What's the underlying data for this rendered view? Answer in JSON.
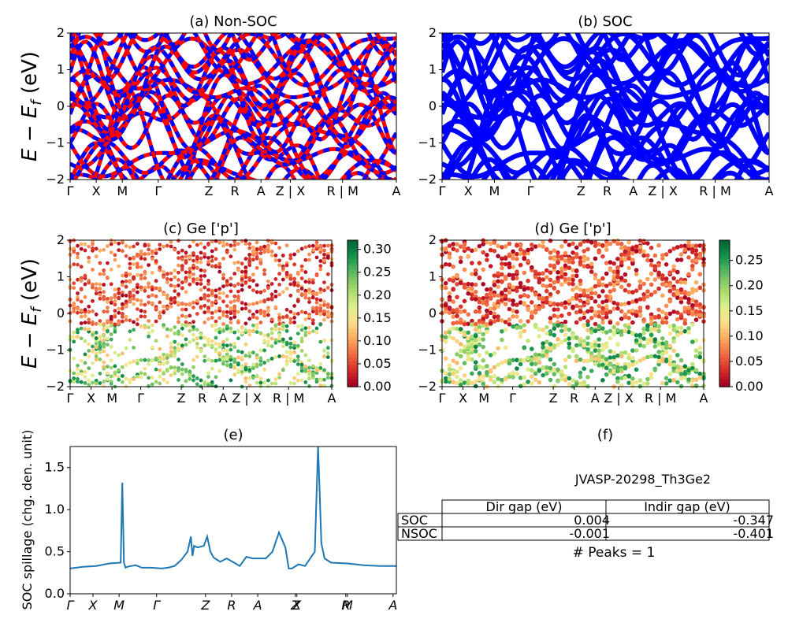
{
  "panels": {
    "a": {
      "title": "(a) Non-SOC",
      "ylabel": "E − E_f (eV)",
      "ylim": [
        -2,
        2
      ],
      "yticks": [
        "−2",
        "−1",
        "0",
        "1",
        "2"
      ],
      "kpath": [
        "Γ",
        "X",
        "M",
        "Γ",
        "Z",
        "R",
        "A",
        "Z | X",
        "R | M",
        "A"
      ],
      "colors": [
        "#ff0000",
        "#0000ff"
      ]
    },
    "b": {
      "title": "(b) SOC",
      "ylim": [
        -2,
        2
      ],
      "yticks": [
        "−2",
        "−1",
        "0",
        "1",
        "2"
      ],
      "kpath": [
        "Γ",
        "X",
        "M",
        "Γ",
        "Z",
        "R",
        "A",
        "Z | X",
        "R | M",
        "A"
      ],
      "colors": [
        "#0000ff"
      ]
    },
    "c": {
      "title": "(c)  Ge ['p']",
      "ylabel": "E − E_f (eV)",
      "ylim": [
        -2,
        2
      ],
      "yticks": [
        "−2",
        "−1",
        "0",
        "1",
        "2"
      ],
      "kpath": [
        "Γ",
        "X",
        "M",
        "Γ",
        "Z",
        "R",
        "A",
        "Z | X",
        "R | M",
        "A"
      ],
      "colorbar": {
        "ticks": [
          "0.00",
          "0.05",
          "0.10",
          "0.15",
          "0.20",
          "0.25",
          "0.30"
        ],
        "max": 0.32
      }
    },
    "d": {
      "title": "(d) Ge ['p']",
      "ylim": [
        -2,
        2
      ],
      "yticks": [
        "−2",
        "−1",
        "0",
        "1",
        "2"
      ],
      "kpath": [
        "Γ",
        "X",
        "M",
        "Γ",
        "Z",
        "R",
        "A",
        "Z | X",
        "R | M",
        "A"
      ],
      "colorbar": {
        "ticks": [
          "0.00",
          "0.05",
          "0.10",
          "0.15",
          "0.20",
          "0.25"
        ],
        "max": 0.29
      }
    },
    "e": {
      "title": "(e)",
      "ylabel": "SOC spillage (chg. den. unit)",
      "ylim": [
        0,
        1.75
      ],
      "yticks": [
        "0.0",
        "0.5",
        "1.0",
        "1.5"
      ],
      "kpath": [
        "Γ",
        "X",
        "M",
        "Γ",
        "Z",
        "R",
        "A",
        "Z",
        "X",
        "R",
        "M",
        "A"
      ]
    },
    "f": {
      "title": "(f)",
      "material": "JVASP-20298_Th3Ge2",
      "table": {
        "headers": [
          "Dir gap (eV)",
          "Indir gap (eV)"
        ],
        "rows": [
          {
            "label": "SOC",
            "dir": "0.004",
            "indir": "-0.347"
          },
          {
            "label": "NSOC",
            "dir": "-0.001",
            "indir": "-0.401"
          }
        ]
      },
      "peaks": "# Peaks = 1"
    }
  },
  "chart_data": [
    {
      "type": "line",
      "title": "(a) Non-SOC",
      "ylabel": "E − E_f (eV)",
      "ylim": [
        -2,
        2
      ],
      "x_ticks": [
        "Γ",
        "X",
        "M",
        "Γ",
        "Z",
        "R",
        "A",
        "Z | X",
        "R | M",
        "A"
      ],
      "series": [
        {
          "name": "",
          "values": []
        }
      ]
    },
    {
      "type": "line",
      "title": "(b) SOC",
      "ylim": [
        -2,
        2
      ],
      "x_ticks": [
        "Γ",
        "X",
        "M",
        "Γ",
        "Z",
        "R",
        "A",
        "Z | X",
        "R | M",
        "A"
      ]
    },
    {
      "type": "scatter",
      "title": "(c)  Ge ['p']",
      "ylim": [
        -2,
        2
      ],
      "colorbar_range": [
        0,
        0.32
      ]
    },
    {
      "type": "scatter",
      "title": "(d) Ge ['p']",
      "ylim": [
        -2,
        2
      ],
      "colorbar_range": [
        0,
        0.29
      ]
    },
    {
      "type": "line",
      "title": "(e)",
      "ylabel": "SOC spillage (chg. den. unit)",
      "ylim": [
        0,
        1.75
      ],
      "x": [
        0,
        0.04,
        0.08,
        0.12,
        0.155,
        0.16,
        0.165,
        0.17,
        0.175,
        0.2,
        0.22,
        0.25,
        0.28,
        0.3,
        0.32,
        0.34,
        0.36,
        0.37,
        0.375,
        0.38,
        0.39,
        0.41,
        0.42,
        0.43,
        0.44,
        0.46,
        0.48,
        0.52,
        0.54,
        0.56,
        0.6,
        0.62,
        0.64,
        0.66,
        0.67,
        0.68,
        0.7,
        0.72,
        0.75,
        0.76,
        0.765,
        0.77,
        0.78,
        0.8,
        0.85,
        0.9,
        0.95,
        1.0
      ],
      "values": [
        0.3,
        0.32,
        0.33,
        0.36,
        0.37,
        1.32,
        0.37,
        0.31,
        0.32,
        0.34,
        0.31,
        0.31,
        0.3,
        0.31,
        0.33,
        0.4,
        0.5,
        0.68,
        0.45,
        0.57,
        0.55,
        0.57,
        0.68,
        0.5,
        0.43,
        0.38,
        0.42,
        0.33,
        0.44,
        0.42,
        0.42,
        0.5,
        0.73,
        0.55,
        0.3,
        0.3,
        0.35,
        0.33,
        0.5,
        1.75,
        1.2,
        0.6,
        0.42,
        0.37,
        0.36,
        0.34,
        0.33,
        0.33
      ]
    }
  ]
}
